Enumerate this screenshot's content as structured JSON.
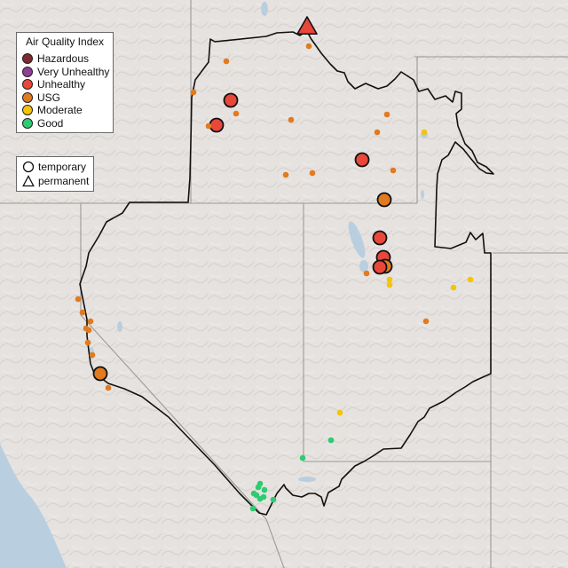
{
  "legend": {
    "title": "Air Quality Index",
    "categories": [
      {
        "label": "Hazardous",
        "color": "#7e2a31"
      },
      {
        "label": "Very Unhealthy",
        "color": "#8f3f97"
      },
      {
        "label": "Unhealthy",
        "color": "#e8473a"
      },
      {
        "label": "USG",
        "color": "#e27a1f"
      },
      {
        "label": "Moderate",
        "color": "#f2c40c"
      },
      {
        "label": "Good",
        "color": "#2ecc71"
      }
    ],
    "types": [
      {
        "label": "temporary",
        "shape": "circle"
      },
      {
        "label": "permanent",
        "shape": "triangle"
      }
    ]
  },
  "colors": {
    "background": "#e6e2df",
    "water": "#b9cfe0",
    "region_border": "#111111",
    "state_border": "#9a9a9a",
    "no_data_marker": "#aaaaaa"
  },
  "monitors": [
    {
      "category": "Unhealthy",
      "type": "permanent",
      "size": "large"
    },
    {
      "category": "USG",
      "type": "temporary",
      "size": "small"
    },
    {
      "category": "USG",
      "type": "temporary",
      "size": "small"
    },
    {
      "category": "USG",
      "type": "temporary",
      "size": "small"
    },
    {
      "category": "Unhealthy",
      "type": "temporary",
      "size": "large"
    },
    {
      "category": "USG",
      "type": "temporary",
      "size": "small"
    },
    {
      "category": "Unhealthy",
      "type": "temporary",
      "size": "large"
    },
    {
      "category": "USG",
      "type": "temporary",
      "size": "small"
    },
    {
      "category": "USG",
      "type": "temporary",
      "size": "small"
    },
    {
      "category": "USG",
      "type": "temporary",
      "size": "small"
    },
    {
      "category": "USG",
      "type": "temporary",
      "size": "small"
    },
    {
      "category": "Moderate",
      "type": "temporary",
      "size": "small"
    },
    {
      "category": "Unhealthy",
      "type": "temporary",
      "size": "large"
    },
    {
      "category": "USG",
      "type": "temporary",
      "size": "small"
    },
    {
      "category": "USG",
      "type": "temporary",
      "size": "small"
    },
    {
      "category": "USG",
      "type": "temporary",
      "size": "small"
    },
    {
      "category": "USG",
      "type": "temporary",
      "size": "large"
    },
    {
      "category": "Unhealthy",
      "type": "temporary",
      "size": "large"
    },
    {
      "category": "Unhealthy",
      "type": "temporary",
      "size": "large"
    },
    {
      "category": "USG",
      "type": "temporary",
      "size": "large"
    },
    {
      "category": "Unhealthy",
      "type": "temporary",
      "size": "large"
    },
    {
      "category": "USG",
      "type": "temporary",
      "size": "small"
    },
    {
      "category": "Moderate",
      "type": "temporary",
      "size": "small"
    },
    {
      "category": "Moderate",
      "type": "temporary",
      "size": "small"
    },
    {
      "category": "Moderate",
      "type": "temporary",
      "size": "small"
    },
    {
      "category": "Moderate",
      "type": "temporary",
      "size": "small"
    },
    {
      "category": "USG",
      "type": "temporary",
      "size": "small"
    },
    {
      "category": "USG",
      "type": "temporary",
      "size": "small"
    },
    {
      "category": "USG",
      "type": "temporary",
      "size": "small"
    },
    {
      "category": "USG",
      "type": "temporary",
      "size": "small"
    },
    {
      "category": "USG",
      "type": "temporary",
      "size": "small"
    },
    {
      "category": "USG",
      "type": "temporary",
      "size": "small"
    },
    {
      "category": "USG",
      "type": "temporary",
      "size": "small"
    },
    {
      "category": "USG",
      "type": "temporary",
      "size": "small"
    },
    {
      "category": "USG",
      "type": "temporary",
      "size": "large"
    },
    {
      "category": "USG",
      "type": "temporary",
      "size": "small"
    },
    {
      "category": "Moderate",
      "type": "temporary",
      "size": "small"
    },
    {
      "category": "Good",
      "type": "temporary",
      "size": "small"
    },
    {
      "category": "Good",
      "type": "temporary",
      "size": "small"
    },
    {
      "category": "Good",
      "type": "temporary",
      "size": "small"
    },
    {
      "category": "Good",
      "type": "temporary",
      "size": "small"
    },
    {
      "category": "Good",
      "type": "temporary",
      "size": "small"
    },
    {
      "category": "Good",
      "type": "temporary",
      "size": "small"
    },
    {
      "category": "Good",
      "type": "temporary",
      "size": "small"
    },
    {
      "category": "Good",
      "type": "temporary",
      "size": "small"
    },
    {
      "category": "Good",
      "type": "temporary",
      "size": "small"
    },
    {
      "category": "Good",
      "type": "temporary",
      "size": "small"
    },
    {
      "category": "Good",
      "type": "temporary",
      "size": "small"
    }
  ]
}
